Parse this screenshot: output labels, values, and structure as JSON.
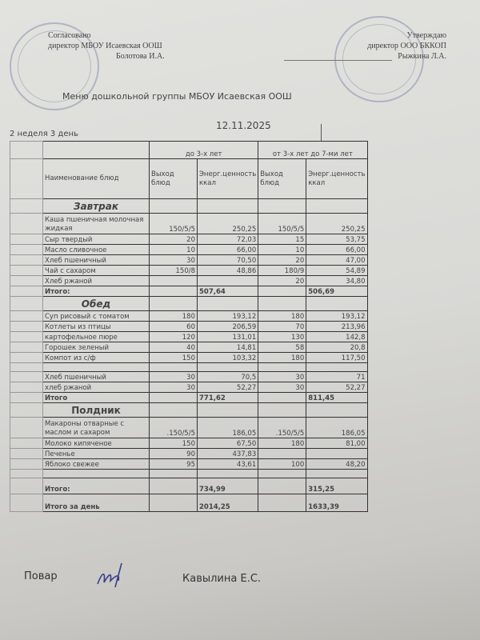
{
  "header": {
    "left": {
      "line1": "Согласовано",
      "line2": "директор МБОУ Исаевская ООШ",
      "line3": "Болотова И.А."
    },
    "right": {
      "line1": "Утверждаю",
      "line2": "директор ООО БККОП",
      "line3": "Рыжкина Л.А."
    },
    "title": "Меню  дошкольной группы МБОУ Исаевская ООШ",
    "date": "12.11.2025",
    "week_day": "2 неделя 3 день"
  },
  "table": {
    "age_groups": [
      "до 3-х лет",
      "от 3-х лет до 7-ми лет"
    ],
    "columns": {
      "name": "Наименование блюд",
      "yield1": "Выход блюд",
      "energy1": "Энерг.ценность ккал",
      "yield2": "Выход блюд",
      "energy2": "Энерг.ценность ккал"
    },
    "sections": [
      {
        "title": "Завтрак",
        "style": "italic",
        "rows": [
          [
            "Каша пшеничная молочная жидкая",
            "150/5/5",
            "250,25",
            "150/5/5",
            "250,25"
          ],
          [
            "Сыр твердый",
            "20",
            "72,03",
            "15",
            "53,75"
          ],
          [
            "Масло сливочное",
            "10",
            "66,00",
            "10",
            "66,00"
          ],
          [
            "Хлеб пшеничный",
            "30",
            "70,50",
            "20",
            "47,00"
          ],
          [
            "Чай с сахаром",
            "150/8",
            "48,86",
            "180/9",
            "54,89"
          ],
          [
            "Хлеб ржаной",
            "",
            "",
            "20",
            "34,80"
          ]
        ],
        "total": {
          "label": "Итого:",
          "v1": "507,64",
          "v2": "506,69"
        }
      },
      {
        "title": "Обед",
        "style": "italic",
        "rows": [
          [
            "Суп рисовый с томатом",
            "180",
            "193,12",
            "180",
            "193,12"
          ],
          [
            "Котлеты из птицы",
            "60",
            "206,59",
            "70",
            "213,96"
          ],
          [
            "картофельное пюре",
            "120",
            "131,01",
            "130",
            "142,8"
          ],
          [
            "Горошек зеленый",
            "40",
            "14,81",
            "58",
            "20,8"
          ],
          [
            "Компот из с/ф",
            "150",
            "103,32",
            "180",
            "117,50"
          ],
          [
            "",
            "",
            "",
            "",
            ""
          ],
          [
            "Хлеб пшеничный",
            "30",
            "70,5",
            "30",
            "71"
          ],
          [
            "хлеб ржаной",
            "30",
            "52,27",
            "30",
            "52,27"
          ]
        ],
        "total": {
          "label": "Итого",
          "v1": "771,62",
          "v2": "811,45"
        }
      },
      {
        "title": "Полдник",
        "style": "normal",
        "rows": [
          [
            "Макароны отварные с маслом и сахаром",
            ".150/5/5",
            "186,05",
            ".150/5/5",
            "186,05"
          ],
          [
            "Молоко кипяченое",
            "150",
            "67,50",
            "180",
            "81,00"
          ],
          [
            "Печенье",
            "90",
            "437,83",
            "",
            ""
          ],
          [
            "Яблоко свежее",
            "95",
            "43,61",
            "100",
            "48,20"
          ],
          [
            "",
            "",
            "",
            "",
            ""
          ]
        ],
        "total": {
          "label": "Итого:",
          "v1": "734,99",
          "v2": "315,25"
        }
      }
    ],
    "day_total": {
      "label": "Итого за день",
      "v1": "2014,25",
      "v2": "1633,39"
    }
  },
  "footer": {
    "role": "Повар",
    "name": "Кавылина Е.С."
  }
}
